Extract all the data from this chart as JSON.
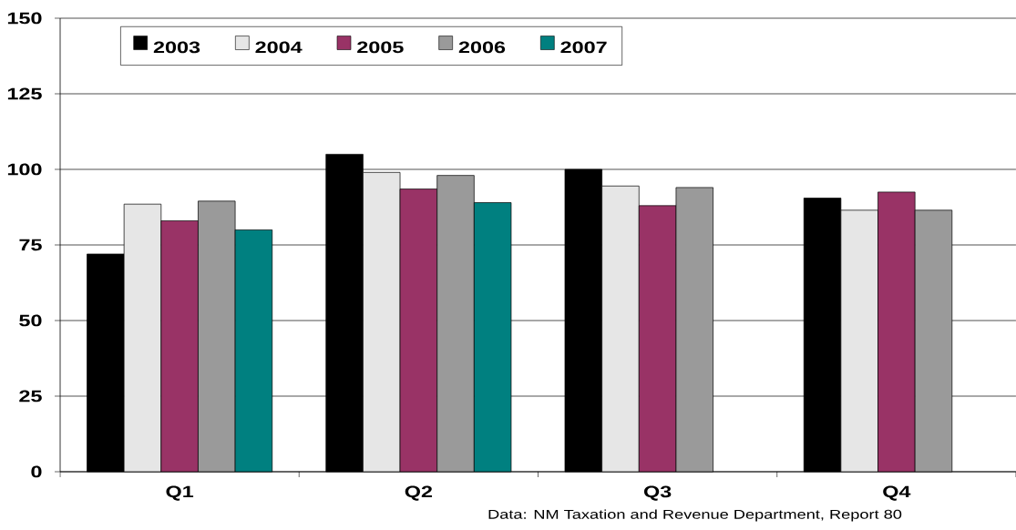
{
  "chart_data": {
    "type": "bar",
    "categories": [
      "Q1",
      "Q2",
      "Q3",
      "Q4"
    ],
    "series": [
      {
        "name": "2003",
        "color": "#000000",
        "values": [
          72,
          105,
          100,
          90.5
        ]
      },
      {
        "name": "2004",
        "color": "#e6e6e6",
        "values": [
          88.5,
          99,
          94.5,
          86.5
        ]
      },
      {
        "name": "2005",
        "color": "#993366",
        "values": [
          83,
          93.5,
          88,
          92.5
        ]
      },
      {
        "name": "2006",
        "color": "#9a9a9a",
        "values": [
          89.5,
          98,
          94,
          86.5
        ]
      },
      {
        "name": "2007",
        "color": "#008080",
        "values": [
          80,
          89,
          null,
          null
        ]
      }
    ],
    "ylim": [
      0,
      150
    ],
    "yticks": [
      0,
      25,
      50,
      75,
      100,
      125,
      150
    ],
    "grid": "y",
    "legend": "top left",
    "annotations": [
      "Data:  NM Taxation and Revenue Department, Report 80"
    ]
  }
}
